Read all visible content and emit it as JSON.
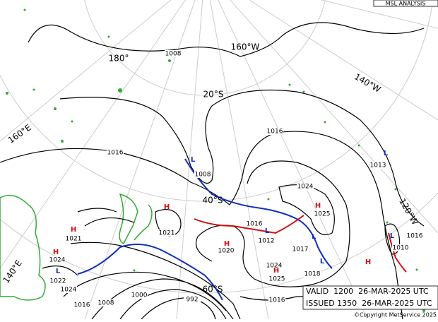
{
  "header": {
    "title": "MSL ANALYSIS"
  },
  "graticule_labels": [
    "180°",
    "160°W",
    "140°W",
    "160°E",
    "140°E",
    "120°W",
    "20°S",
    "40°S",
    "60°S"
  ],
  "isobar_labels": [
    1008,
    1016,
    1016,
    1013,
    1024,
    1025,
    1016,
    1012,
    1017,
    1010,
    1016,
    1020,
    1024,
    1025,
    1018,
    1021,
    1021,
    1024,
    1022,
    1024,
    1016,
    1008,
    1000,
    992,
    1016,
    1008
  ],
  "pressure_centres": [
    "H",
    "H",
    "H",
    "L",
    "H",
    "L",
    "L",
    "H",
    "L",
    "H",
    "L",
    "H",
    "L",
    "L"
  ],
  "info": {
    "valid": "VALID  1200  26-MAR-2025 UTC",
    "issued": "ISSUED 1350  26-MAR-2025 UTC",
    "copyright": "©Copyright MetService 2025"
  }
}
